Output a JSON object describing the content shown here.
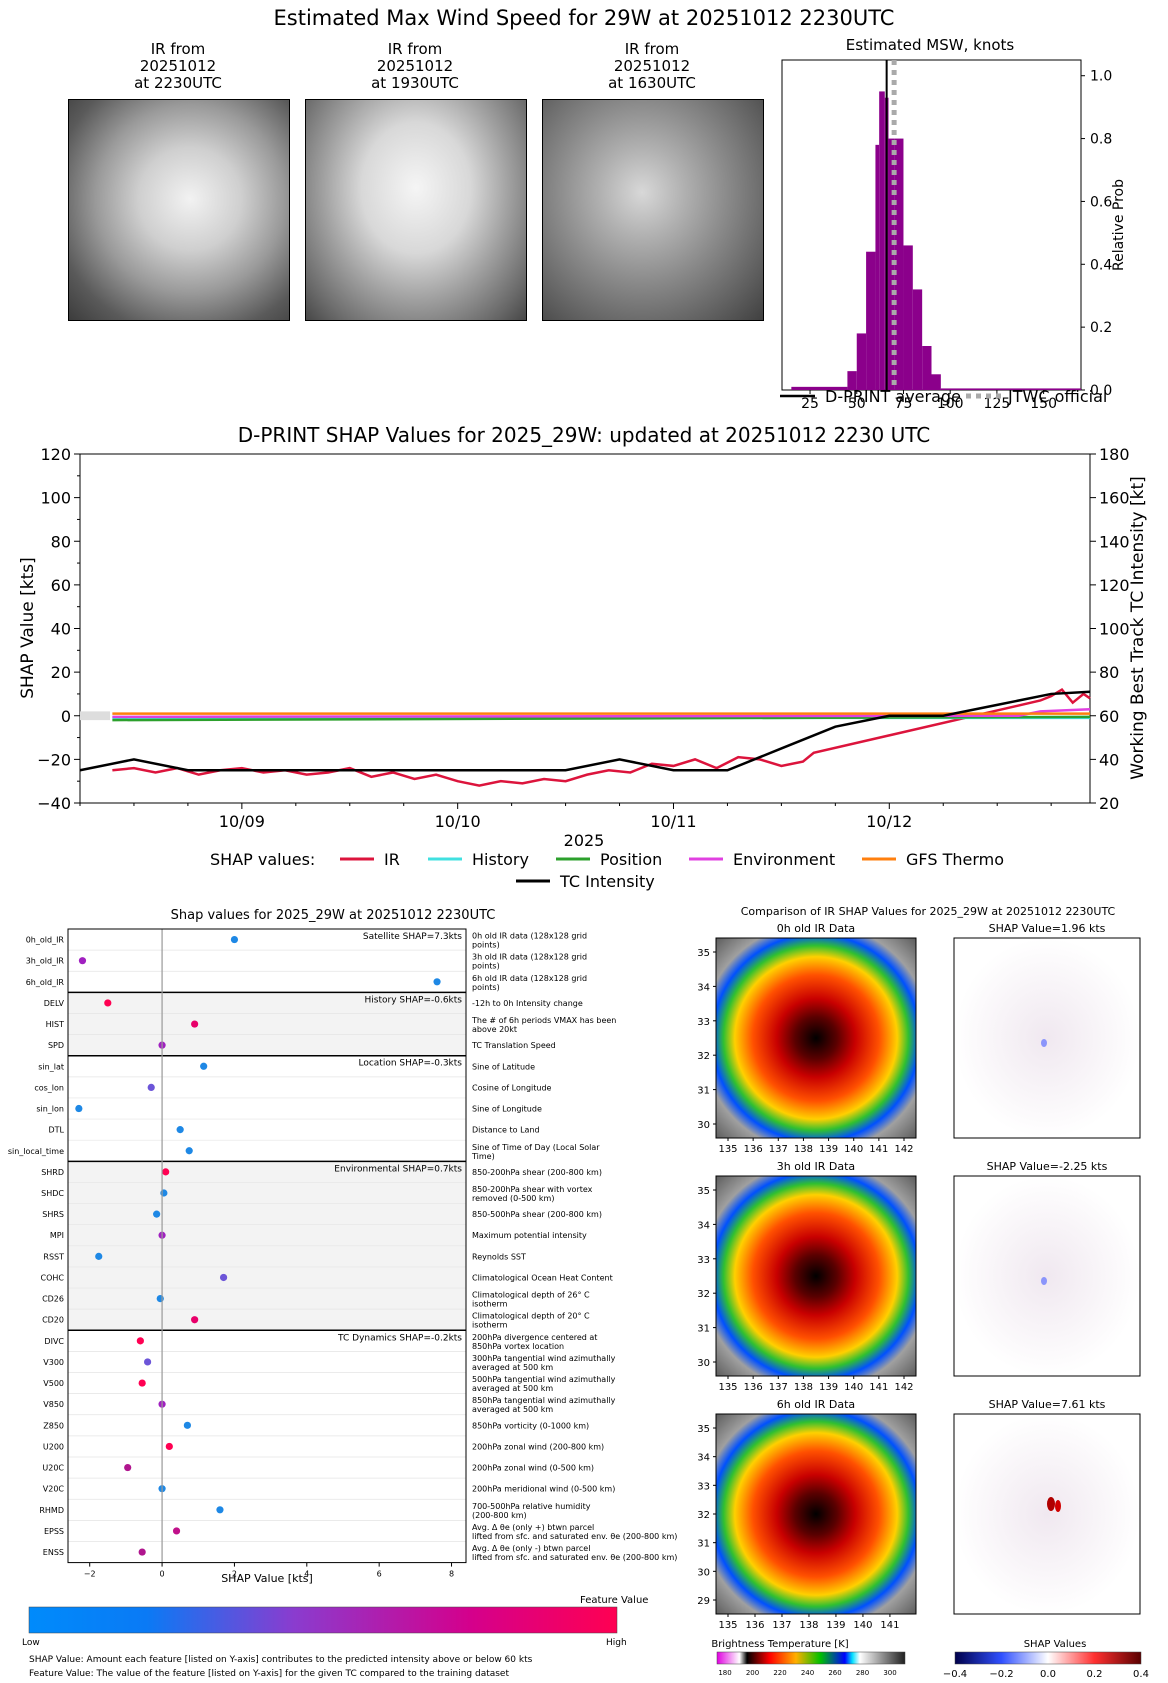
{
  "main_title": "Estimated Max Wind Speed for 29W at 20251012 2230UTC",
  "ir_panels": [
    {
      "line1": "IR from",
      "line2": "20251012",
      "line3": "at 2230UTC"
    },
    {
      "line1": "IR from",
      "line2": "20251012",
      "line3": "at 1930UTC"
    },
    {
      "line1": "IR from",
      "line2": "20251012",
      "line3": "at 1630UTC"
    }
  ],
  "msw_chart": {
    "type": "bar",
    "title": "Estimated MSW, knots",
    "ylabel": "Relative Prob",
    "xlim": [
      10,
      170
    ],
    "ylim": [
      0,
      1.05
    ],
    "xticks": [
      "25",
      "50",
      "75",
      "100",
      "125",
      "150"
    ],
    "yticks": [
      "0.0",
      "0.2",
      "0.4",
      "0.6",
      "0.8",
      "1.0"
    ],
    "bin_starts": [
      15,
      45,
      50,
      55,
      60,
      62,
      65,
      67,
      70,
      75,
      80,
      85,
      90,
      95
    ],
    "bin_widths": [
      30,
      5,
      5,
      5,
      2,
      3,
      2,
      3,
      5,
      5,
      5,
      5,
      5,
      75
    ],
    "probs": [
      0.01,
      0.06,
      0.18,
      0.44,
      0.78,
      0.95,
      0.93,
      0.8,
      0.8,
      0.46,
      0.32,
      0.14,
      0.05,
      0.005
    ],
    "dprint_average": 66,
    "jtwc_official": 70,
    "legend": {
      "dprint": "D-PRINT average",
      "jtwc": "JTWC official"
    }
  },
  "shap_ts": {
    "type": "line",
    "title": "D-PRINT SHAP Values for 2025_29W: updated at 20251012 2230 UTC",
    "ylabel": "SHAP Value [kts]",
    "y2label": "Working Best Track TC Intensity [kt]",
    "xlabel": "2025",
    "ylim": [
      -40,
      120
    ],
    "y2lim": [
      20,
      180
    ],
    "yticks": [
      "−40",
      "−20",
      "0",
      "20",
      "40",
      "60",
      "80",
      "100",
      "120"
    ],
    "y2ticks": [
      "20",
      "40",
      "60",
      "80",
      "100",
      "120",
      "140",
      "160",
      "180"
    ],
    "xlim_days": [
      -0.75,
      3.93
    ],
    "xticks": [
      "10/09",
      "10/10",
      "10/11",
      "10/12"
    ],
    "legend_label": "SHAP values:",
    "series": [
      {
        "name": "IR",
        "color": "#dc143c",
        "x": [
          -0.6,
          -0.5,
          -0.4,
          -0.3,
          -0.2,
          -0.1,
          0,
          0.1,
          0.2,
          0.3,
          0.4,
          0.5,
          0.6,
          0.7,
          0.8,
          0.9,
          1.0,
          1.1,
          1.2,
          1.3,
          1.4,
          1.5,
          1.6,
          1.7,
          1.8,
          1.9,
          2.0,
          2.1,
          2.2,
          2.3,
          2.4,
          2.5,
          2.6,
          2.65,
          3.7,
          3.75,
          3.8,
          3.85,
          3.9,
          3.93
        ],
        "y": [
          -25,
          -24,
          -26,
          -24,
          -27,
          -25,
          -24,
          -26,
          -25,
          -27,
          -26,
          -24,
          -28,
          -26,
          -29,
          -27,
          -30,
          -32,
          -30,
          -31,
          -29,
          -30,
          -27,
          -25,
          -26,
          -22,
          -23,
          -20,
          -24,
          -19,
          -20,
          -23,
          -21,
          -17,
          7,
          9,
          12,
          6,
          10,
          8
        ]
      },
      {
        "name": "History",
        "color": "#40e0e0",
        "x": [
          -0.6,
          3.93
        ],
        "y": [
          -1,
          -1
        ]
      },
      {
        "name": "Position",
        "color": "#2ca02c",
        "x": [
          -0.6,
          3.93
        ],
        "y": [
          -2,
          -0.5
        ]
      },
      {
        "name": "Environment",
        "color": "#e040e0",
        "x": [
          -0.6,
          3.6,
          3.7,
          3.93
        ],
        "y": [
          -0.5,
          0,
          2,
          3
        ]
      },
      {
        "name": "GFS Thermo",
        "color": "#ff7f0e",
        "x": [
          -0.6,
          3.93
        ],
        "y": [
          1,
          1
        ]
      }
    ],
    "tc_intensity": {
      "name": "TC Intensity",
      "color": "#000000",
      "x": [
        -0.75,
        -0.5,
        -0.25,
        0,
        0.25,
        0.5,
        0.75,
        1.0,
        1.25,
        1.5,
        1.75,
        2.0,
        2.25,
        2.5,
        2.75,
        3.0,
        3.25,
        3.5,
        3.75,
        3.93
      ],
      "y": [
        35,
        40,
        35,
        35,
        35,
        35,
        35,
        35,
        35,
        35,
        40,
        35,
        35,
        45,
        55,
        60,
        60,
        65,
        70,
        71
      ]
    }
  },
  "bar_shap": {
    "title": "Shap values for 2025_29W at 20251012 2230UTC",
    "xlabel": "SHAP Value [kts]",
    "xticks": [
      "−2",
      "0",
      "2",
      "4",
      "6",
      "8"
    ],
    "groups": [
      {
        "label": "Satellite SHAP=7.3kts",
        "rows": [
          {
            "feature": "0h_old_IR",
            "desc": "0h old IR data (128x128 grid points)",
            "value": 2.0,
            "color": "#1e88e5"
          },
          {
            "feature": "3h_old_IR",
            "desc": "3h old IR data (128x128 grid points)",
            "value": -2.2,
            "color": "#a020c0"
          },
          {
            "feature": "6h_old_IR",
            "desc": "6h old IR data (128x128 grid points)",
            "value": 7.6,
            "color": "#1e88e5"
          }
        ]
      },
      {
        "label": "History SHAP=-0.6kts",
        "rows": [
          {
            "feature": "DELV",
            "desc": "-12h to 0h Intensity change",
            "value": -1.5,
            "color": "#ff0052"
          },
          {
            "feature": "HIST",
            "desc": "The # of 6h periods VMAX has been above 20kt",
            "value": 0.9,
            "color": "#e8006a"
          },
          {
            "feature": "SPD",
            "desc": "TC Translation Speed",
            "value": 0.0,
            "color": "#a020c0"
          }
        ]
      },
      {
        "label": "Location SHAP=-0.3kts",
        "rows": [
          {
            "feature": "sin_lat",
            "desc": "Sine of Latitude",
            "value": 1.15,
            "color": "#1e88e5"
          },
          {
            "feature": "cos_lon",
            "desc": "Cosine of Longitude",
            "value": -0.3,
            "color": "#6c55d8"
          },
          {
            "feature": "sin_lon",
            "desc": "Sine of Longitude",
            "value": -2.3,
            "color": "#1e88e5"
          },
          {
            "feature": "DTL",
            "desc": "Distance to Land",
            "value": 0.5,
            "color": "#1e88e5"
          },
          {
            "feature": "sin_local_time",
            "desc": "Sine of Time of Day (Local Solar Time)",
            "value": 0.75,
            "color": "#1e88e5"
          }
        ]
      },
      {
        "label": "Environmental SHAP=0.7kts",
        "rows": [
          {
            "feature": "SHRD",
            "desc": "850-200hPa shear (200-800 km)",
            "value": 0.1,
            "color": "#ff0052"
          },
          {
            "feature": "SHDC",
            "desc": "850-200hPa shear with vortex removed (0-500 km)",
            "value": 0.05,
            "color": "#1e88e5"
          },
          {
            "feature": "SHRS",
            "desc": "850-500hPa shear (200-800 km)",
            "value": -0.15,
            "color": "#1e88e5"
          },
          {
            "feature": "MPI",
            "desc": "Maximum potential intensity",
            "value": 0.0,
            "color": "#a020c0"
          },
          {
            "feature": "RSST",
            "desc": "Reynolds SST",
            "value": -1.75,
            "color": "#1e88e5"
          },
          {
            "feature": "COHC",
            "desc": "Climatological Ocean Heat Content",
            "value": 1.7,
            "color": "#6c55d8"
          },
          {
            "feature": "CD26",
            "desc": "Climatological depth of 26° C isotherm",
            "value": -0.05,
            "color": "#1e88e5"
          },
          {
            "feature": "CD20",
            "desc": "Climatological depth of 20° C isotherm",
            "value": 0.9,
            "color": "#e8006a"
          }
        ]
      },
      {
        "label": "TC Dynamics SHAP=-0.2kts",
        "rows": [
          {
            "feature": "DIVC",
            "desc": "200hPa divergence centered at 850hPa vortex location",
            "value": -0.6,
            "color": "#ff0052"
          },
          {
            "feature": "V300",
            "desc": "300hPa tangential wind azimuthally averaged at 500 km",
            "value": -0.4,
            "color": "#6c55d8"
          },
          {
            "feature": "V500",
            "desc": "500hPa tangential wind azimuthally averaged at 500 km",
            "value": -0.55,
            "color": "#ff0052"
          },
          {
            "feature": "V850",
            "desc": "850hPa tangential wind azimuthally averaged at 500 km",
            "value": 0.0,
            "color": "#a020c0"
          },
          {
            "feature": "Z850",
            "desc": "850hPa vorticity (0-1000 km)",
            "value": 0.7,
            "color": "#1e88e5"
          },
          {
            "feature": "U200",
            "desc": "200hPa zonal wind (200-800 km)",
            "value": 0.2,
            "color": "#ff0052"
          },
          {
            "feature": "U20C",
            "desc": "200hPa zonal wind (0-500 km)",
            "value": -0.95,
            "color": "#b0158e"
          },
          {
            "feature": "V20C",
            "desc": "200hPa meridional wind (0-500 km)",
            "value": 0.0,
            "color": "#1e88e5"
          },
          {
            "feature": "RHMD",
            "desc": "700-500hPa relative humidity (200-800 km)",
            "value": 1.6,
            "color": "#1e88e5"
          },
          {
            "feature": "EPSS",
            "desc": "Avg. Δ θe (only +) btwn parcel lifted from sfc. and saturated env. θe (200-800 km)",
            "value": 0.4,
            "color": "#c0108a"
          },
          {
            "feature": "ENSS",
            "desc": "Avg. Δ θe (only -) btwn parcel lifted from sfc. and saturated env. θe (200-800 km)",
            "value": -0.55,
            "color": "#b0158e"
          }
        ]
      }
    ],
    "colorbar": {
      "title": "Feature Value",
      "low": "Low",
      "high": "High"
    },
    "note1": "SHAP Value: Amount each feature [listed on Y-axis] contributes to the predicted intensity above or below 60 kts",
    "note2": "Feature Value: The value of the feature [listed on Y-axis] for the given TC compared to the training dataset"
  },
  "ir_compare": {
    "title": "Comparison of IR SHAP Values for 2025_29W at 20251012 2230UTC",
    "panels": [
      {
        "left_title": "0h old IR Data",
        "right_title": "SHAP Value=1.96 kts"
      },
      {
        "left_title": "3h old IR Data",
        "right_title": "SHAP Value=-2.25 kts"
      },
      {
        "left_title": "6h old IR Data",
        "right_title": "SHAP Value=7.61 kts"
      }
    ],
    "lon_ticks_a": [
      "135",
      "136",
      "137",
      "138",
      "139",
      "140",
      "141",
      "142"
    ],
    "lon_ticks_b": [
      "135",
      "136",
      "137",
      "138",
      "139",
      "140",
      "141"
    ],
    "lat_ticks_a": [
      "35",
      "34",
      "33",
      "32",
      "31",
      "30"
    ],
    "lat_ticks_b": [
      "35",
      "34",
      "33",
      "32",
      "31",
      "30",
      "29"
    ],
    "bt_colorbar": {
      "title": "Brightness Temperature [K]",
      "ticks": [
        "180",
        "200",
        "220",
        "240",
        "260",
        "280",
        "300"
      ]
    },
    "shap_colorbar": {
      "title": "SHAP Values",
      "ticks": [
        "−0.4",
        "−0.2",
        "0.0",
        "0.2",
        "0.4"
      ]
    }
  }
}
